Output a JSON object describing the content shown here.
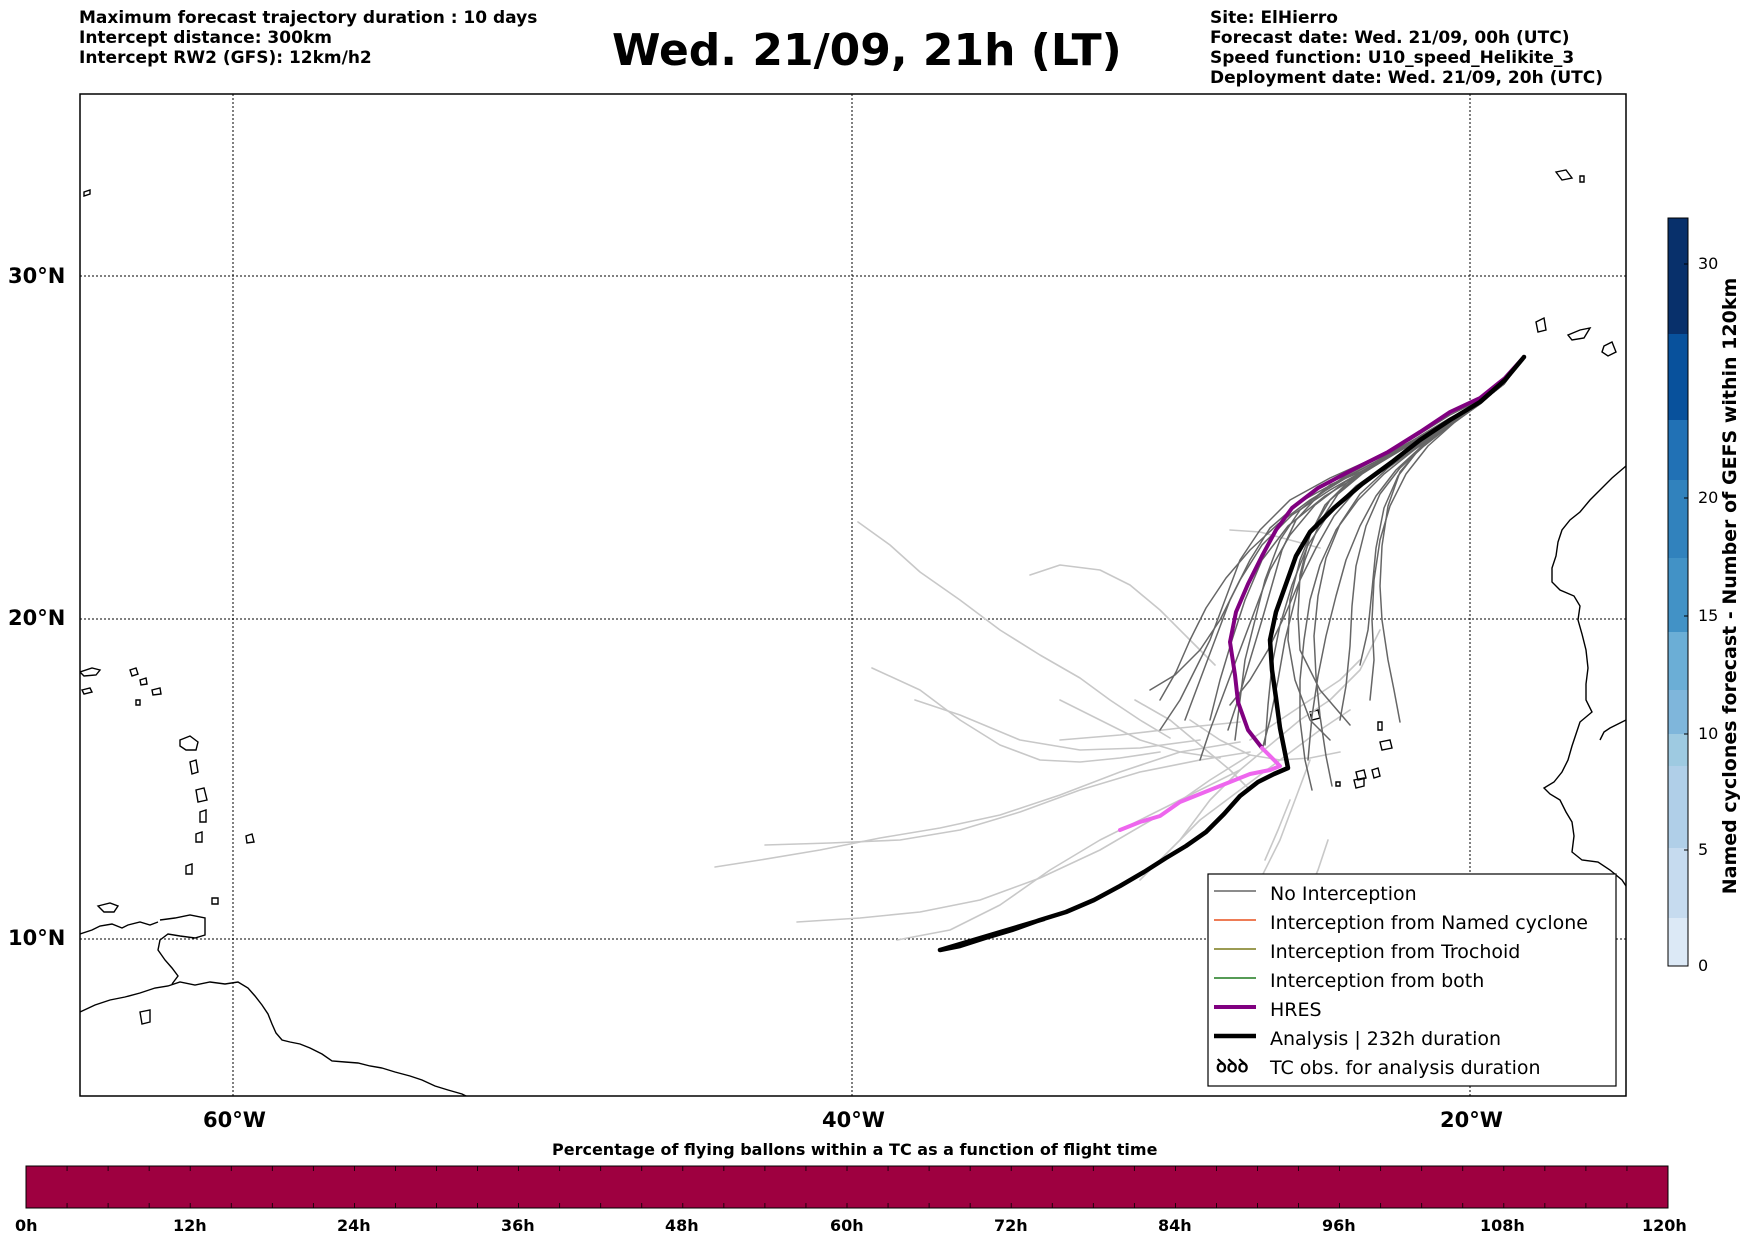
{
  "header": {
    "left": [
      "Maximum forecast trajectory duration : 10 days",
      "Intercept distance: 300km",
      "Intercept RW2 (GFS):  12km/h2"
    ],
    "title": "Wed. 21/09, 21h (LT)",
    "right": [
      "Site: ElHierro",
      "Forecast date: Wed. 21/09, 00h (UTC)",
      "Speed function: U10_speed_Helikite_3",
      "Deployment date: Wed. 21/09, 20h (UTC)"
    ]
  },
  "map": {
    "lat_labels": [
      "30°N",
      "20°N",
      "10°N"
    ],
    "lon_labels": [
      "60°W",
      "40°W",
      "20°W"
    ],
    "lon_range": [
      -65,
      -15
    ],
    "lat_range": [
      5.5,
      34.8
    ],
    "grid": true
  },
  "legend": {
    "items": [
      {
        "label": "No Interception",
        "color": "#666666",
        "style": "thin"
      },
      {
        "label": "Interception from Named cyclone",
        "color": "#e8501e",
        "style": "thin"
      },
      {
        "label": "Interception from Trochoid",
        "color": "#7a7a1a",
        "style": "thin"
      },
      {
        "label": "Interception from both",
        "color": "#1f7a1f",
        "style": "thin"
      },
      {
        "label": "HRES",
        "color": "#800080",
        "style": "thick"
      },
      {
        "label": "Analysis | 232h duration",
        "color": "#000000",
        "style": "thick"
      },
      {
        "label": "TC obs. for analysis duration",
        "color": "#000000",
        "style": "symbol",
        "symbol": "ꝺꝺꝺ"
      }
    ]
  },
  "colorbar_right": {
    "label": "Named cyclones forecast - Number of GEFS within 120km",
    "ticks": [
      "0",
      "5",
      "10",
      "15",
      "20",
      "30"
    ],
    "colors": [
      "#dce9f6",
      "#c6dbef",
      "#9ecae1",
      "#6baed6",
      "#4292c6",
      "#2171b5",
      "#08519c",
      "#08306b"
    ]
  },
  "colorbar_bottom": {
    "label": "Percentage of flying ballons within a TC as a function of flight time",
    "ticks": [
      "0h",
      "12h",
      "24h",
      "36h",
      "48h",
      "60h",
      "72h",
      "84h",
      "96h",
      "108h",
      "120h"
    ],
    "fill_color": "#9e0040"
  },
  "trajectories": {
    "launch_site": {
      "lon": -17.8,
      "lat": 27.5
    },
    "hres_color": "#800080",
    "hres_tail_color": "#ee66ee",
    "analysis_color": "#000000",
    "no_interception_color": "#666666",
    "light_color": "#c8c8c8"
  }
}
